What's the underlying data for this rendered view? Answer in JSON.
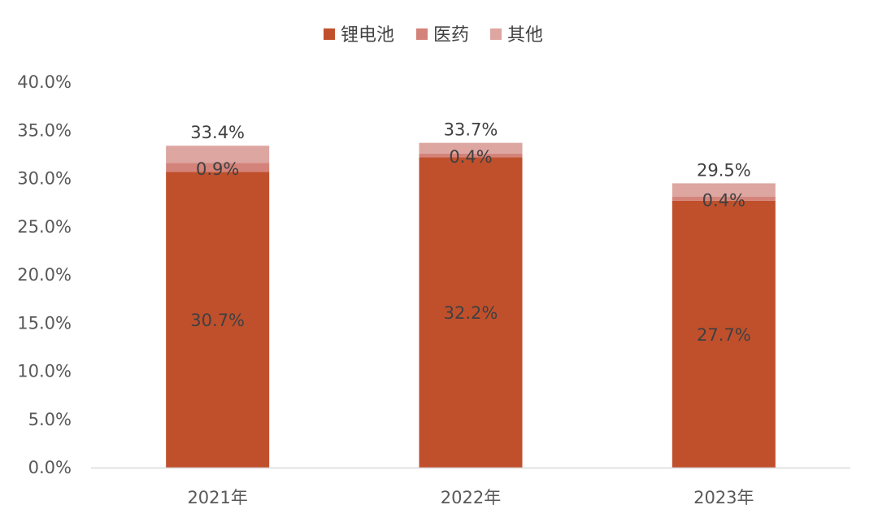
{
  "chart_data": {
    "type": "bar",
    "stacked": true,
    "title": "",
    "xlabel": "",
    "ylabel": "",
    "categories": [
      "2021年",
      "2022年",
      "2023年"
    ],
    "series": [
      {
        "name": "锂电池",
        "values": [
          30.7,
          32.2,
          27.7
        ],
        "labels": [
          "30.7%",
          "32.2%",
          "27.7%"
        ],
        "color": "#C0502C"
      },
      {
        "name": "医药",
        "values": [
          0.9,
          0.4,
          0.4
        ],
        "labels": [
          "0.9%",
          "0.4%",
          "0.4%"
        ],
        "color": "#D4837A"
      },
      {
        "name": "其他",
        "values": [
          1.8,
          1.1,
          1.4
        ],
        "labels": [
          "",
          "",
          ""
        ],
        "color": "#DDA6A1"
      }
    ],
    "totals": [
      33.4,
      33.7,
      29.5
    ],
    "total_labels": [
      "33.4%",
      "33.7%",
      "29.5%"
    ],
    "ylim": [
      0,
      40
    ],
    "yticks": [
      "0.0%",
      "5.0%",
      "10.0%",
      "15.0%",
      "20.0%",
      "25.0%",
      "30.0%",
      "35.0%",
      "40.0%"
    ],
    "grid": false,
    "legend_position": "top-center"
  },
  "colors": {
    "axis_line": "#D9D9D9",
    "tick_text": "#595959",
    "label_text": "#404040",
    "legend_text": "#404040"
  }
}
